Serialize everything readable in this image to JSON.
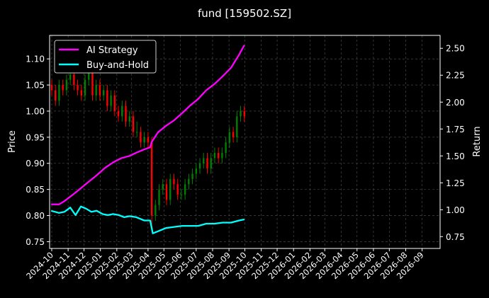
{
  "chart_data": {
    "type": "line",
    "title": "fund [159502.SZ]",
    "ylabel": "Price",
    "ylabel_right": "Return",
    "xlabel": "",
    "ylim": [
      0.737,
      1.145
    ],
    "ylim_right": [
      0.64,
      2.62
    ],
    "xlim": [
      "2024-09-27",
      "2026-10-05"
    ],
    "grid": true,
    "legend_position": "top-left",
    "y_ticks": [
      0.75,
      0.8,
      0.85,
      0.9,
      0.95,
      1.0,
      1.05,
      1.1
    ],
    "y_tick_labels": [
      "0.75",
      "0.80",
      "0.85",
      "0.90",
      "0.95",
      "1.00",
      "1.05",
      "1.10"
    ],
    "y_right_ticks": [
      0.75,
      1.0,
      1.25,
      1.5,
      1.75,
      2.0,
      2.25,
      2.5
    ],
    "y_right_tick_labels": [
      "0.75",
      "1.00",
      "1.25",
      "1.50",
      "1.75",
      "2.00",
      "2.25",
      "2.50"
    ],
    "x_ticks": [
      "2024-10-01",
      "2024-11-01",
      "2024-12-01",
      "2025-01-01",
      "2025-02-01",
      "2025-03-01",
      "2025-04-01",
      "2025-05-01",
      "2025-06-01",
      "2025-07-01",
      "2025-08-01",
      "2025-09-01",
      "2025-10-01",
      "2025-11-01",
      "2025-12-01",
      "2026-01-01",
      "2026-02-01",
      "2026-03-01",
      "2026-04-01",
      "2026-05-01",
      "2026-06-01",
      "2026-07-01",
      "2026-08-01",
      "2026-09-01"
    ],
    "x_tick_labels": [
      "2024-10",
      "2024-11",
      "2024-12",
      "2025-01",
      "2025-02",
      "2025-03",
      "2025-04",
      "2025-05",
      "2025-06",
      "2025-07",
      "2025-08",
      "2025-09",
      "2025-10",
      "2025-11",
      "2025-12",
      "2026-01",
      "2026-02",
      "2026-03",
      "2026-04",
      "2026-05",
      "2026-06",
      "2026-07",
      "2026-08",
      "2026-09"
    ],
    "series": [
      {
        "name": "AI Strategy",
        "axis": "right",
        "color": "#ff00ff",
        "x": [
          "2024-09-30",
          "2024-10-15",
          "2024-10-25",
          "2024-11-10",
          "2024-11-25",
          "2024-12-10",
          "2024-12-25",
          "2025-01-10",
          "2025-01-25",
          "2025-02-10",
          "2025-02-25",
          "2025-03-10",
          "2025-03-25",
          "2025-04-05",
          "2025-04-08",
          "2025-04-20",
          "2025-05-05",
          "2025-05-20",
          "2025-06-05",
          "2025-06-20",
          "2025-07-05",
          "2025-07-20",
          "2025-08-05",
          "2025-08-20",
          "2025-09-05",
          "2025-09-20",
          "2025-09-30"
        ],
        "y": [
          1.05,
          1.05,
          1.08,
          1.14,
          1.2,
          1.26,
          1.32,
          1.39,
          1.44,
          1.48,
          1.5,
          1.53,
          1.56,
          1.58,
          1.63,
          1.72,
          1.78,
          1.83,
          1.9,
          1.97,
          2.03,
          2.11,
          2.17,
          2.24,
          2.32,
          2.44,
          2.53
        ]
      },
      {
        "name": "Buy-and-Hold",
        "axis": "right",
        "color": "#00ffff",
        "x": [
          "2024-09-30",
          "2024-10-15",
          "2024-10-25",
          "2024-11-05",
          "2024-11-15",
          "2024-11-25",
          "2024-12-05",
          "2024-12-15",
          "2024-12-25",
          "2025-01-05",
          "2025-01-15",
          "2025-01-25",
          "2025-02-05",
          "2025-02-15",
          "2025-02-25",
          "2025-03-10",
          "2025-03-25",
          "2025-04-05",
          "2025-04-10",
          "2025-04-20",
          "2025-05-05",
          "2025-05-20",
          "2025-06-05",
          "2025-06-20",
          "2025-07-05",
          "2025-07-20",
          "2025-08-05",
          "2025-08-20",
          "2025-09-05",
          "2025-09-20",
          "2025-09-30"
        ],
        "y": [
          0.99,
          0.97,
          0.98,
          1.02,
          0.95,
          1.03,
          1.01,
          0.98,
          0.99,
          0.96,
          0.95,
          0.96,
          0.95,
          0.93,
          0.94,
          0.93,
          0.9,
          0.9,
          0.78,
          0.8,
          0.83,
          0.84,
          0.85,
          0.85,
          0.85,
          0.87,
          0.87,
          0.88,
          0.88,
          0.9,
          0.91
        ]
      }
    ],
    "candles": {
      "axis": "left",
      "up_color": "#008000",
      "down_color": "#ff0000",
      "x": [
        "2024-10-01",
        "2024-10-08",
        "2024-10-15",
        "2024-10-22",
        "2024-10-29",
        "2024-11-05",
        "2024-11-12",
        "2024-11-19",
        "2024-11-26",
        "2024-12-03",
        "2024-12-10",
        "2024-12-17",
        "2024-12-24",
        "2024-12-31",
        "2025-01-07",
        "2025-01-14",
        "2025-01-21",
        "2025-01-28",
        "2025-02-04",
        "2025-02-11",
        "2025-02-18",
        "2025-02-25",
        "2025-03-04",
        "2025-03-11",
        "2025-03-18",
        "2025-03-25",
        "2025-04-01",
        "2025-04-08",
        "2025-04-15",
        "2025-04-22",
        "2025-04-29",
        "2025-05-06",
        "2025-05-13",
        "2025-05-20",
        "2025-05-27",
        "2025-06-03",
        "2025-06-10",
        "2025-06-17",
        "2025-06-24",
        "2025-07-01",
        "2025-07-08",
        "2025-07-15",
        "2025-07-22",
        "2025-07-29",
        "2025-08-05",
        "2025-08-12",
        "2025-08-19",
        "2025-08-26",
        "2025-09-02",
        "2025-09-09",
        "2025-09-16",
        "2025-09-23",
        "2025-09-30"
      ],
      "open": [
        1.05,
        1.04,
        1.02,
        1.05,
        1.04,
        1.06,
        1.07,
        1.05,
        1.04,
        1.03,
        1.06,
        1.08,
        1.03,
        1.05,
        1.03,
        1.04,
        1.01,
        1.03,
        1.0,
        0.99,
        1.01,
        0.98,
        0.99,
        0.96,
        0.96,
        0.94,
        0.95,
        0.94,
        0.8,
        0.82,
        0.85,
        0.86,
        0.83,
        0.87,
        0.86,
        0.84,
        0.84,
        0.86,
        0.87,
        0.88,
        0.89,
        0.9,
        0.91,
        0.89,
        0.91,
        0.92,
        0.91,
        0.92,
        0.94,
        0.96,
        0.95,
        0.99,
        1.0
      ],
      "close": [
        1.04,
        1.02,
        1.05,
        1.04,
        1.06,
        1.07,
        1.05,
        1.04,
        1.03,
        1.06,
        1.08,
        1.03,
        1.05,
        1.03,
        1.04,
        1.01,
        1.03,
        1.0,
        0.99,
        1.01,
        0.98,
        0.99,
        0.96,
        0.96,
        0.94,
        0.95,
        0.94,
        0.8,
        0.82,
        0.85,
        0.86,
        0.83,
        0.87,
        0.86,
        0.84,
        0.84,
        0.86,
        0.87,
        0.88,
        0.89,
        0.9,
        0.91,
        0.89,
        0.91,
        0.92,
        0.91,
        0.92,
        0.94,
        0.96,
        0.95,
        0.99,
        1.0,
        0.99
      ],
      "high": [
        1.06,
        1.05,
        1.06,
        1.06,
        1.07,
        1.08,
        1.08,
        1.06,
        1.05,
        1.07,
        1.09,
        1.09,
        1.06,
        1.06,
        1.05,
        1.05,
        1.04,
        1.04,
        1.01,
        1.02,
        1.02,
        1.0,
        1.0,
        0.98,
        0.97,
        0.96,
        0.96,
        0.95,
        0.83,
        0.86,
        0.87,
        0.87,
        0.88,
        0.88,
        0.87,
        0.85,
        0.87,
        0.88,
        0.89,
        0.9,
        0.91,
        0.92,
        0.92,
        0.92,
        0.93,
        0.93,
        0.93,
        0.95,
        0.97,
        0.97,
        1.0,
        1.01,
        1.01
      ],
      "low": [
        1.03,
        1.01,
        1.01,
        1.03,
        1.03,
        1.05,
        1.04,
        1.03,
        1.02,
        1.02,
        1.05,
        1.02,
        1.02,
        1.02,
        1.02,
        1.0,
        1.0,
        0.99,
        0.98,
        0.98,
        0.97,
        0.97,
        0.95,
        0.95,
        0.93,
        0.93,
        0.93,
        0.77,
        0.79,
        0.81,
        0.84,
        0.82,
        0.82,
        0.85,
        0.83,
        0.83,
        0.83,
        0.85,
        0.86,
        0.87,
        0.88,
        0.89,
        0.88,
        0.88,
        0.9,
        0.9,
        0.9,
        0.91,
        0.93,
        0.94,
        0.94,
        0.98,
        0.98
      ]
    }
  }
}
